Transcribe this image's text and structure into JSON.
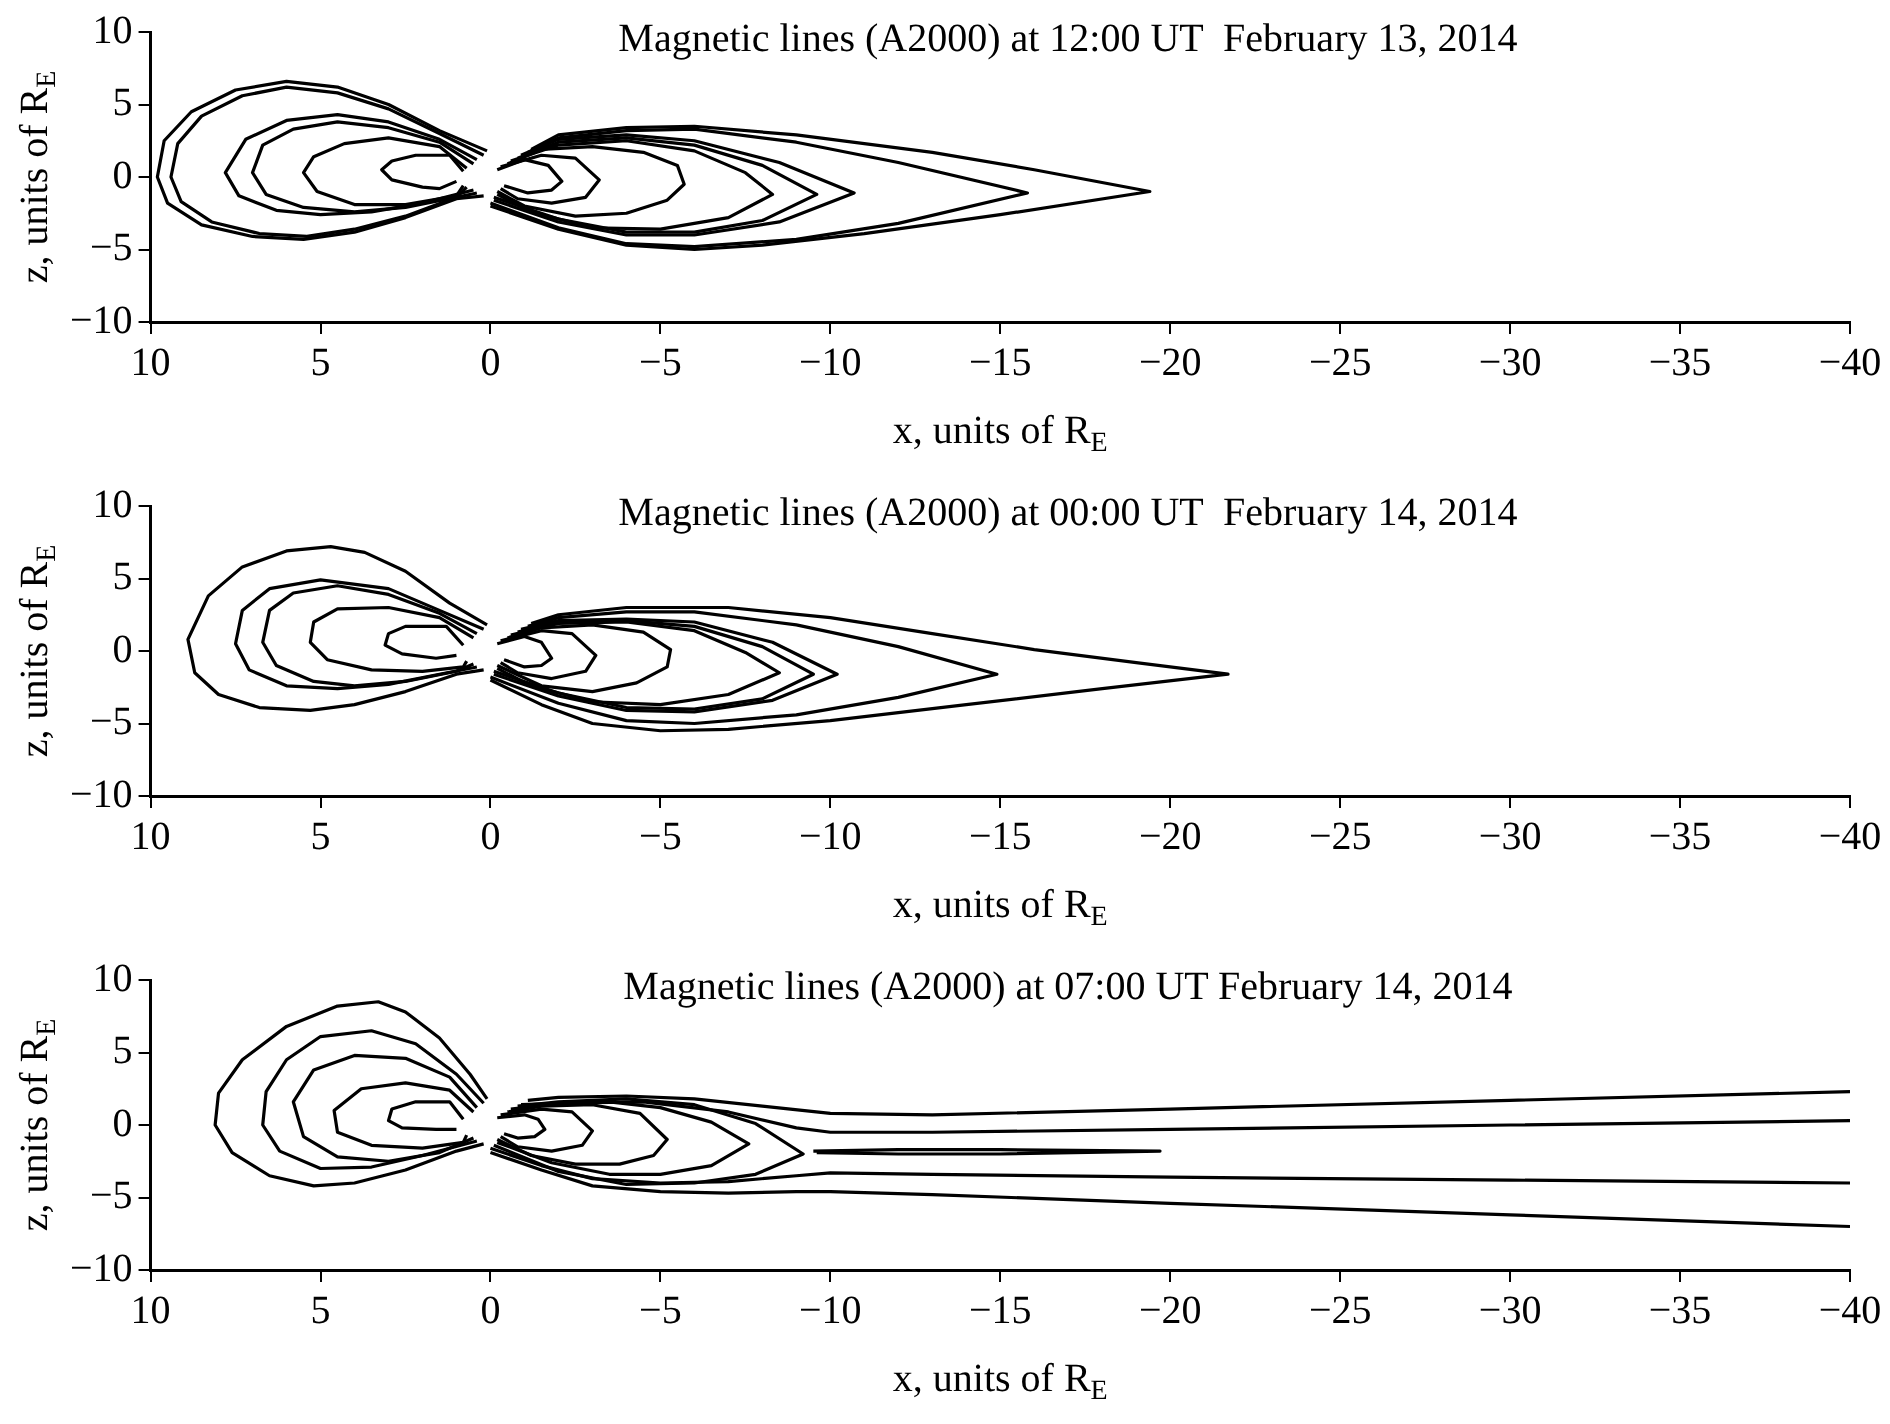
{
  "chart_data": [
    {
      "type": "line",
      "title": "Magnetic lines (A2000) at 12:00 UT  February 13, 2014",
      "xlabel": "x, units of R$_{E}$",
      "ylabel": "z, units of R$_{E}$",
      "xlim": [
        10,
        -40
      ],
      "xticks": [
        10,
        5,
        0,
        -5,
        -10,
        -15,
        -20,
        -25,
        -30,
        -35,
        -40
      ],
      "ylim": [
        -10,
        10
      ],
      "yticks": [
        -10,
        -5,
        0,
        5,
        10
      ],
      "marker": "none",
      "line_style": "solid",
      "legend": false,
      "series": [
        {
          "color": "#000000",
          "x": [
            0.1,
            1.5,
            3,
            4.5,
            6,
            7.5,
            8.8,
            9.6,
            9.8,
            9.5,
            8.5,
            7,
            5.5,
            4,
            2.5,
            1,
            0.2
          ],
          "values": [
            1.8,
            3.2,
            5.0,
            6.2,
            6.6,
            6.0,
            4.5,
            2.5,
            0,
            -1.8,
            -3.3,
            -4.1,
            -4.3,
            -3.8,
            -2.8,
            -1.5,
            -1.3
          ]
        },
        {
          "color": "#000000",
          "x": [
            0.2,
            1.5,
            3,
            4.5,
            6,
            7.3,
            8.5,
            9.2,
            9.4,
            9.1,
            8.2,
            6.8,
            5.4,
            4,
            2.5,
            1,
            0.4
          ],
          "values": [
            1.5,
            3.0,
            4.7,
            5.8,
            6.2,
            5.6,
            4.2,
            2.3,
            0,
            -1.7,
            -3.1,
            -3.9,
            -4.1,
            -3.6,
            -2.7,
            -1.4,
            -1.1
          ]
        },
        {
          "color": "#000000",
          "x": [
            0.4,
            1.5,
            3,
            4.5,
            6,
            7.2,
            7.8,
            7.4,
            6.3,
            5,
            3.5,
            2,
            0.5
          ],
          "values": [
            1.2,
            2.6,
            3.8,
            4.3,
            3.9,
            2.6,
            0.3,
            -1.3,
            -2.3,
            -2.6,
            -2.4,
            -1.8,
            -0.9
          ]
        },
        {
          "color": "#000000",
          "x": [
            0.5,
            1.5,
            3,
            4.5,
            5.8,
            6.7,
            7.0,
            6.6,
            5.5,
            4,
            2.5,
            1,
            0.7
          ],
          "values": [
            0.9,
            2.4,
            3.4,
            3.8,
            3.3,
            2.2,
            0.3,
            -1.2,
            -2.1,
            -2.4,
            -2.1,
            -1.4,
            -0.7
          ]
        },
        {
          "color": "#000000",
          "x": [
            0.7,
            1.5,
            3,
            4.3,
            5.2,
            5.5,
            5.1,
            4,
            2.5,
            1,
            0.8
          ],
          "values": [
            0.6,
            2.1,
            2.7,
            2.3,
            1.4,
            0.3,
            -1.0,
            -1.9,
            -1.9,
            -1.3,
            -0.6
          ]
        },
        {
          "color": "#000000",
          "x": [
            0.8,
            1.2,
            2.2,
            2.9,
            3.2,
            2.9,
            2,
            1.5,
            1.0
          ],
          "values": [
            0.4,
            1.5,
            1.5,
            1.1,
            0.5,
            -0.2,
            -0.7,
            -0.8,
            -0.3
          ]
        },
        {
          "color": "#000000",
          "x": [
            -0.2,
            -1,
            -1.7,
            -2.1,
            -1.8,
            -1.1,
            -0.4
          ],
          "values": [
            0.5,
            1.2,
            0.8,
            -0.3,
            -0.9,
            -1.1,
            -0.6
          ]
        },
        {
          "color": "#000000",
          "x": [
            -0.3,
            -1.5,
            -2.5,
            -3.2,
            -2.8,
            -1.8,
            -0.8,
            -0.3
          ],
          "values": [
            0.7,
            1.5,
            1.3,
            -0.2,
            -1.4,
            -1.8,
            -1.5,
            -0.8
          ]
        },
        {
          "color": "#000000",
          "x": [
            -0.5,
            -1.5,
            -3,
            -4.5,
            -5.5,
            -5.7,
            -5.2,
            -4,
            -2.5,
            -1,
            -0.2
          ],
          "values": [
            0.9,
            1.9,
            2.1,
            1.7,
            0.8,
            -0.5,
            -1.6,
            -2.5,
            -2.7,
            -2.0,
            -1.0
          ]
        },
        {
          "color": "#000000",
          "x": [
            -0.6,
            -2,
            -4,
            -6,
            -7.5,
            -8.3,
            -7,
            -5,
            -3,
            -1.2,
            -0.2
          ],
          "values": [
            1.1,
            2.2,
            2.5,
            1.8,
            0.3,
            -1.2,
            -2.8,
            -3.6,
            -3.5,
            -2.4,
            -1.2
          ]
        },
        {
          "color": "#000000",
          "x": [
            -0.8,
            -2,
            -4,
            -6,
            -8,
            -9.6,
            -8,
            -6,
            -4,
            -2,
            -0.1
          ],
          "values": [
            1.3,
            2.4,
            2.7,
            2.2,
            0.8,
            -1.2,
            -3.0,
            -3.8,
            -3.8,
            -2.9,
            -1.4
          ]
        },
        {
          "color": "#000000",
          "x": [
            -0.9,
            -2,
            -4,
            -6,
            -8.5,
            -10.7,
            -8.5,
            -6,
            -4,
            -2,
            -0.1
          ],
          "values": [
            1.5,
            2.6,
            2.9,
            2.5,
            1.0,
            -1.1,
            -3.1,
            -4.0,
            -4.0,
            -3.1,
            -1.6
          ]
        },
        {
          "color": "#000000",
          "x": [
            -1.1,
            -2,
            -4,
            -6,
            -9,
            -12,
            -15.8,
            -12,
            -9,
            -6,
            -4,
            -2,
            0
          ],
          "values": [
            1.7,
            2.7,
            3.2,
            3.3,
            2.4,
            1.0,
            -1.1,
            -3.2,
            -4.3,
            -4.8,
            -4.6,
            -3.5,
            -1.8
          ]
        },
        {
          "color": "#000000",
          "x": [
            -1.2,
            -2,
            -4,
            -6,
            -9,
            -13,
            -16,
            -19.4,
            -15,
            -11,
            -8,
            -6,
            -4,
            -2,
            0
          ],
          "values": [
            1.9,
            2.9,
            3.4,
            3.5,
            2.9,
            1.7,
            0.5,
            -1.0,
            -2.6,
            -3.9,
            -4.7,
            -5.0,
            -4.7,
            -3.6,
            -2.0
          ]
        }
      ]
    },
    {
      "type": "line",
      "title": "Magnetic lines (A2000) at 00:00 UT  February 14, 2014",
      "xlabel": "x, units of R$_{E}$",
      "ylabel": "z, units of R$_{E}$",
      "xlim": [
        10,
        -40
      ],
      "xticks": [
        10,
        5,
        0,
        -5,
        -10,
        -15,
        -20,
        -25,
        -30,
        -35,
        -40
      ],
      "ylim": [
        -10,
        10
      ],
      "yticks": [
        -10,
        -5,
        0,
        5,
        10
      ],
      "marker": "none",
      "line_style": "solid",
      "legend": false,
      "series": [
        {
          "color": "#000000",
          "x": [
            0.1,
            1.2,
            2.5,
            3.7,
            4.7,
            6,
            7.3,
            8.3,
            8.9,
            8.7,
            8,
            6.8,
            5.3,
            4,
            2.5,
            1,
            0.2
          ],
          "values": [
            1.8,
            3.3,
            5.5,
            6.8,
            7.2,
            6.9,
            5.8,
            3.8,
            0.8,
            -1.5,
            -3.0,
            -3.9,
            -4.1,
            -3.7,
            -2.8,
            -1.6,
            -1.3
          ]
        },
        {
          "color": "#000000",
          "x": [
            0.2,
            1.5,
            3,
            5,
            6.5,
            7.3,
            7.5,
            7.1,
            6,
            4.5,
            3,
            1.5,
            0.4
          ],
          "values": [
            1.5,
            2.8,
            4.3,
            4.9,
            4.3,
            2.8,
            0.5,
            -1.3,
            -2.4,
            -2.6,
            -2.3,
            -1.6,
            -1.1
          ]
        },
        {
          "color": "#000000",
          "x": [
            0.4,
            1.5,
            3,
            4.5,
            5.8,
            6.5,
            6.7,
            6.3,
            5.2,
            4,
            2.5,
            1,
            0.5
          ],
          "values": [
            1.2,
            2.6,
            3.9,
            4.5,
            4.0,
            2.8,
            0.6,
            -1.0,
            -2.1,
            -2.4,
            -2.1,
            -1.4,
            -0.9
          ]
        },
        {
          "color": "#000000",
          "x": [
            0.5,
            1.5,
            3,
            4.5,
            5.2,
            5.3,
            4.8,
            3.5,
            2,
            0.8,
            0.7
          ],
          "values": [
            0.9,
            2.3,
            3.0,
            2.9,
            2.0,
            0.6,
            -0.6,
            -1.3,
            -1.4,
            -1.1,
            -0.7
          ]
        },
        {
          "color": "#000000",
          "x": [
            0.8,
            1.3,
            2.5,
            3.0,
            3.1,
            2.6,
            1.6,
            1.0
          ],
          "values": [
            0.4,
            1.7,
            1.7,
            1.2,
            0.4,
            -0.2,
            -0.5,
            -0.3
          ]
        },
        {
          "color": "#000000",
          "x": [
            -0.2,
            -1,
            -1.5,
            -1.8,
            -1.5,
            -1,
            -0.4
          ],
          "values": [
            0.5,
            1.0,
            0.6,
            -0.5,
            -1.0,
            -1.1,
            -0.6
          ]
        },
        {
          "color": "#000000",
          "x": [
            -0.3,
            -1.5,
            -2.4,
            -3.1,
            -2.8,
            -1.8,
            -0.8,
            -0.3
          ],
          "values": [
            0.7,
            1.4,
            1.2,
            -0.3,
            -1.4,
            -1.9,
            -1.5,
            -0.8
          ]
        },
        {
          "color": "#000000",
          "x": [
            -0.5,
            -1.5,
            -3,
            -4.5,
            -5.3,
            -5.2,
            -4.3,
            -3,
            -1.5,
            -0.2
          ],
          "values": [
            0.9,
            1.6,
            1.8,
            1.3,
            0.1,
            -1.1,
            -2.2,
            -2.8,
            -2.4,
            -1.0
          ]
        },
        {
          "color": "#000000",
          "x": [
            -0.6,
            -2,
            -4,
            -6,
            -7.5,
            -8.5,
            -7,
            -5,
            -3,
            -1.2,
            -0.2
          ],
          "values": [
            1.1,
            1.9,
            2.0,
            1.4,
            -0.1,
            -1.5,
            -3.0,
            -3.7,
            -3.5,
            -2.4,
            -1.2
          ]
        },
        {
          "color": "#000000",
          "x": [
            -0.8,
            -2,
            -4,
            -6,
            -8,
            -9.5,
            -8,
            -6,
            -4,
            -2,
            -0.1
          ],
          "values": [
            1.3,
            2.0,
            2.1,
            1.7,
            0.3,
            -1.6,
            -3.3,
            -4.0,
            -3.9,
            -2.9,
            -1.4
          ]
        },
        {
          "color": "#000000",
          "x": [
            -0.9,
            -2,
            -4,
            -6,
            -8.3,
            -10.2,
            -8.3,
            -6,
            -4,
            -2,
            -0.1
          ],
          "values": [
            1.5,
            2.1,
            2.2,
            2.0,
            0.6,
            -1.6,
            -3.4,
            -4.2,
            -4.1,
            -3.1,
            -1.6
          ]
        },
        {
          "color": "#000000",
          "x": [
            -1.1,
            -2,
            -4,
            -6,
            -9,
            -12,
            -14.9,
            -12,
            -9,
            -6,
            -4,
            -2,
            0
          ],
          "values": [
            1.7,
            2.3,
            2.7,
            2.7,
            1.8,
            0.3,
            -1.6,
            -3.2,
            -4.4,
            -5.0,
            -4.8,
            -3.6,
            -1.8
          ]
        },
        {
          "color": "#000000",
          "x": [
            -1.2,
            -2,
            -4,
            -7,
            -10,
            -13,
            -16,
            -19,
            -21.7,
            -18,
            -14,
            -10,
            -7,
            -5,
            -3,
            -1.5,
            0
          ],
          "values": [
            1.9,
            2.5,
            3.0,
            3.0,
            2.3,
            1.2,
            0.1,
            -0.8,
            -1.6,
            -2.6,
            -3.7,
            -4.8,
            -5.4,
            -5.5,
            -5.0,
            -3.7,
            -2.0
          ]
        }
      ]
    },
    {
      "type": "line",
      "title": "Magnetic lines (A2000) at 07:00 UT February 14, 2014",
      "xlabel": "x, units of R$_{E}$",
      "ylabel": "z, units of R$_{E}$",
      "xlim": [
        10,
        -40
      ],
      "xticks": [
        10,
        5,
        0,
        -5,
        -10,
        -15,
        -20,
        -25,
        -30,
        -35,
        -40
      ],
      "ylim": [
        -10,
        10
      ],
      "yticks": [
        -10,
        -5,
        0,
        5,
        10
      ],
      "marker": "none",
      "line_style": "solid",
      "legend": false,
      "series": [
        {
          "color": "#000000",
          "x": [
            0.1,
            0.6,
            1.5,
            2.5,
            3.3,
            4.5,
            6,
            7.3,
            8.0,
            8.1,
            7.6,
            6.5,
            5.2,
            4,
            2.5,
            1,
            0.2
          ],
          "values": [
            1.8,
            3.5,
            6.0,
            7.8,
            8.5,
            8.2,
            6.8,
            4.5,
            2.2,
            0,
            -1.9,
            -3.5,
            -4.2,
            -4.0,
            -3.1,
            -1.8,
            -1.3
          ]
        },
        {
          "color": "#000000",
          "x": [
            0.2,
            1,
            2.2,
            3.5,
            5,
            6,
            6.6,
            6.7,
            6.2,
            5,
            3.5,
            2,
            0.4
          ],
          "values": [
            1.5,
            3.5,
            5.6,
            6.5,
            6.1,
            4.5,
            2.3,
            0,
            -1.8,
            -3.0,
            -2.9,
            -2.1,
            -1.1
          ]
        },
        {
          "color": "#000000",
          "x": [
            0.4,
            1.2,
            2.5,
            4,
            5.2,
            5.8,
            5.5,
            4.5,
            3,
            1.5,
            0.5
          ],
          "values": [
            1.2,
            3.3,
            4.6,
            4.8,
            3.8,
            1.6,
            -0.8,
            -2.2,
            -2.5,
            -1.9,
            -0.9
          ]
        },
        {
          "color": "#000000",
          "x": [
            0.5,
            1.2,
            2.5,
            3.8,
            4.6,
            4.5,
            3.5,
            2,
            0.8,
            0.7
          ],
          "values": [
            0.9,
            2.4,
            2.9,
            2.5,
            1.0,
            -0.5,
            -1.4,
            -1.6,
            -1.2,
            -0.7
          ]
        },
        {
          "color": "#000000",
          "x": [
            0.8,
            1.2,
            2.2,
            2.9,
            3.0,
            2.6,
            1.6,
            1.0
          ],
          "values": [
            0.4,
            1.6,
            1.6,
            1.1,
            0.3,
            -0.2,
            -0.3,
            -0.3
          ]
        },
        {
          "color": "#000000",
          "x": [
            -0.2,
            -1,
            -1.4,
            -1.6,
            -1.3,
            -0.8,
            -0.4
          ],
          "values": [
            0.5,
            0.7,
            0.4,
            -0.3,
            -0.8,
            -0.9,
            -0.6
          ]
        },
        {
          "color": "#000000",
          "x": [
            -0.3,
            -1.5,
            -2.4,
            -3.0,
            -2.7,
            -1.8,
            -0.8,
            -0.3
          ],
          "values": [
            0.7,
            1.1,
            0.9,
            -0.4,
            -1.4,
            -1.8,
            -1.5,
            -0.8
          ]
        },
        {
          "color": "#000000",
          "x": [
            -0.5,
            -1.5,
            -3,
            -4.4,
            -5.2,
            -4.8,
            -3.8,
            -2.5,
            -1.2,
            -0.2
          ],
          "values": [
            0.9,
            1.3,
            1.4,
            0.8,
            -1.0,
            -2.1,
            -2.7,
            -2.7,
            -2.1,
            -1.0
          ]
        },
        {
          "color": "#000000",
          "x": [
            -0.6,
            -2,
            -3.5,
            -5,
            -6.5,
            -7.6,
            -6.5,
            -5,
            -3.5,
            -1.8,
            -0.2
          ],
          "values": [
            1.1,
            1.5,
            1.6,
            1.2,
            0.2,
            -1.3,
            -2.8,
            -3.4,
            -3.4,
            -2.6,
            -1.2
          ]
        },
        {
          "color": "#000000",
          "x": [
            -0.8,
            -2,
            -4,
            -6,
            -7.8,
            -9.2,
            -7.8,
            -6,
            -4,
            -2,
            -0.1
          ],
          "values": [
            1.3,
            1.6,
            1.8,
            1.4,
            0.1,
            -2.0,
            -3.4,
            -4.0,
            -4.1,
            -3.2,
            -1.4
          ]
        },
        {
          "color": "#000000",
          "x": [
            -9.5,
            -12,
            -15,
            -19.7,
            -15,
            -12,
            -9.6
          ],
          "values": [
            -1.8,
            -1.7,
            -1.7,
            -1.8,
            -2.0,
            -2.0,
            -1.9
          ]
        },
        {
          "color": "#000000",
          "x": [
            -1.1,
            -2,
            -4,
            -6,
            -8,
            -10,
            -13,
            -20,
            -30,
            -40
          ],
          "values": [
            1.7,
            1.9,
            2.0,
            1.8,
            1.3,
            0.8,
            0.7,
            1.1,
            1.7,
            2.3
          ]
        },
        {
          "color": "#000000",
          "x": [
            -0.9,
            -2,
            -4.5,
            -7,
            -9,
            -10,
            -13,
            -20,
            -30,
            -40
          ],
          "values": [
            1.4,
            1.5,
            1.6,
            0.9,
            -0.2,
            -0.5,
            -0.5,
            -0.3,
            0,
            0.3
          ]
        },
        {
          "color": "#000000",
          "x": [
            0,
            -1.5,
            -3,
            -5,
            -7,
            -9,
            -10,
            -13,
            -20,
            -30,
            -40
          ],
          "values": [
            -1.6,
            -2.8,
            -3.7,
            -4.0,
            -3.9,
            -3.5,
            -3.3,
            -3.4,
            -3.6,
            -3.8,
            -4.0
          ]
        },
        {
          "color": "#000000",
          "x": [
            0,
            -1.5,
            -3,
            -5,
            -7,
            -9,
            -10,
            -13,
            -20,
            -30,
            -40
          ],
          "values": [
            -1.9,
            -3.1,
            -4.2,
            -4.6,
            -4.7,
            -4.6,
            -4.6,
            -4.8,
            -5.4,
            -6.2,
            -7.0
          ]
        }
      ]
    }
  ]
}
